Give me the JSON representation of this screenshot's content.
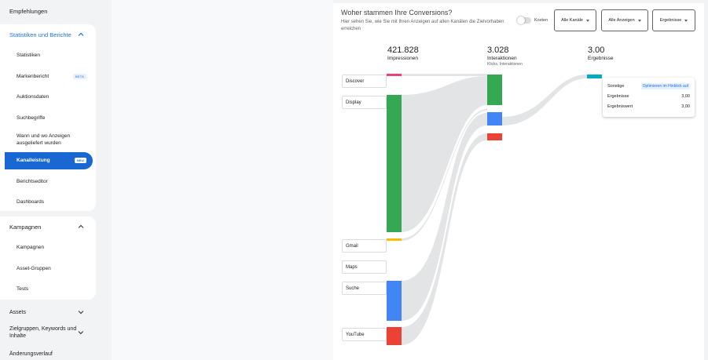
{
  "sidebar": {
    "top_item": "Empfehlungen",
    "group1": {
      "title": "Statistiken und Berichte",
      "items": [
        {
          "label": "Statistiken",
          "badge": ""
        },
        {
          "label": "Markenbericht",
          "badge": "BETA"
        },
        {
          "label": "Auktionsdaten",
          "badge": ""
        },
        {
          "label": "Suchbegriffe",
          "badge": ""
        },
        {
          "label": "Wann und wo Anzeigen ausgeliefert wurden",
          "badge": ""
        },
        {
          "label": "Kanalleistung",
          "badge": "NEU",
          "active": true
        },
        {
          "label": "Berichtseditor",
          "badge": ""
        },
        {
          "label": "Dashboards",
          "badge": ""
        }
      ]
    },
    "group2": {
      "title": "Kampagnen",
      "items": [
        {
          "label": "Kampagnen"
        },
        {
          "label": "Asset-Gruppen"
        },
        {
          "label": "Tests"
        }
      ]
    },
    "bottom_items": [
      {
        "label": "Assets"
      },
      {
        "label": "Zielgruppen, Keywords und Inhalte"
      },
      {
        "label": "Änderungsverlauf"
      }
    ]
  },
  "panel": {
    "title": "Woher stammen Ihre Conversions?",
    "subtitle": "Hier sehen Sie, wie Sie mit Ihren Anzeigen auf allen Kanälen die Zielvorhaben erreichen",
    "toggle_label": "Kosten",
    "dropdowns": [
      "Alle Kanäle",
      "Alle Anzeigen",
      "Ergebnisse"
    ]
  },
  "stats": {
    "impressions": {
      "value": "421.828",
      "label": "Impressionen"
    },
    "interactions": {
      "value": "3.028",
      "label": "Interaktionen",
      "sublabel": "Klicks, Interaktionen"
    },
    "results": {
      "value": "3.00",
      "label": "Ergebnisse"
    }
  },
  "channels": [
    "Discover",
    "Display",
    "Gmail",
    "Maps",
    "Suche",
    "YouTube"
  ],
  "tooltip": {
    "name": "Sonstige",
    "link": "Optimieren im Hinblick auf",
    "rows": [
      {
        "label": "Ergebnisse",
        "value": "3,00"
      },
      {
        "label": "Ergebniswert",
        "value": "3,00"
      }
    ]
  },
  "colors": {
    "discover": "#e8437c",
    "display": "#34a853",
    "gmail": "#fbbc04",
    "suche": "#4285f4",
    "youtube": "#ea4335",
    "other": "#00acc1",
    "flow": "#dadce0",
    "active_nav": "#1967d2"
  }
}
